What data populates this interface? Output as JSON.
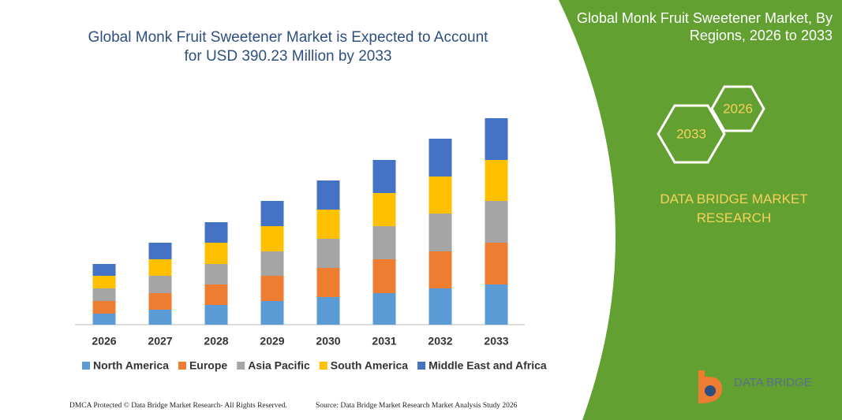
{
  "chart_data": {
    "type": "bar",
    "stacked": true,
    "title": "Global Monk Fruit Sweetener Market is Expected to Account for USD 390.23 Million by 2033",
    "categories": [
      "2026",
      "2027",
      "2028",
      "2029",
      "2030",
      "2031",
      "2032",
      "2033"
    ],
    "series": [
      {
        "name": "North America",
        "color": "#5b9bd5",
        "values": [
          14,
          19,
          25,
          30,
          35,
          40,
          46,
          51
        ]
      },
      {
        "name": "Europe",
        "color": "#ed7d31",
        "values": [
          16,
          21,
          26,
          32,
          37,
          43,
          47,
          53
        ]
      },
      {
        "name": "Asia Pacific",
        "color": "#a5a5a5",
        "values": [
          16,
          22,
          26,
          31,
          37,
          42,
          48,
          53
        ]
      },
      {
        "name": "South America",
        "color": "#ffc000",
        "values": [
          16,
          21,
          27,
          32,
          37,
          42,
          47,
          52
        ]
      },
      {
        "name": "Middle East and Africa",
        "color": "#4472c4",
        "values": [
          15,
          21,
          26,
          32,
          37,
          42,
          48,
          53
        ]
      }
    ],
    "ylim": [
      0,
      262
    ]
  },
  "panel": {
    "title": "Global Monk Fruit Sweetener Market, By Regions, 2026 to 2033",
    "hex_small": "2026",
    "hex_large": "2033",
    "brand": "DATA BRIDGE MARKET RESEARCH"
  },
  "logo": {
    "text": "DATA BRIDGE"
  },
  "footer": {
    "left": "DMCA Protected © Data Bridge Market Research-  All Rights Reserved.",
    "right": "Source: Data Bridge Market Research  Market Analysis Study 2026"
  }
}
